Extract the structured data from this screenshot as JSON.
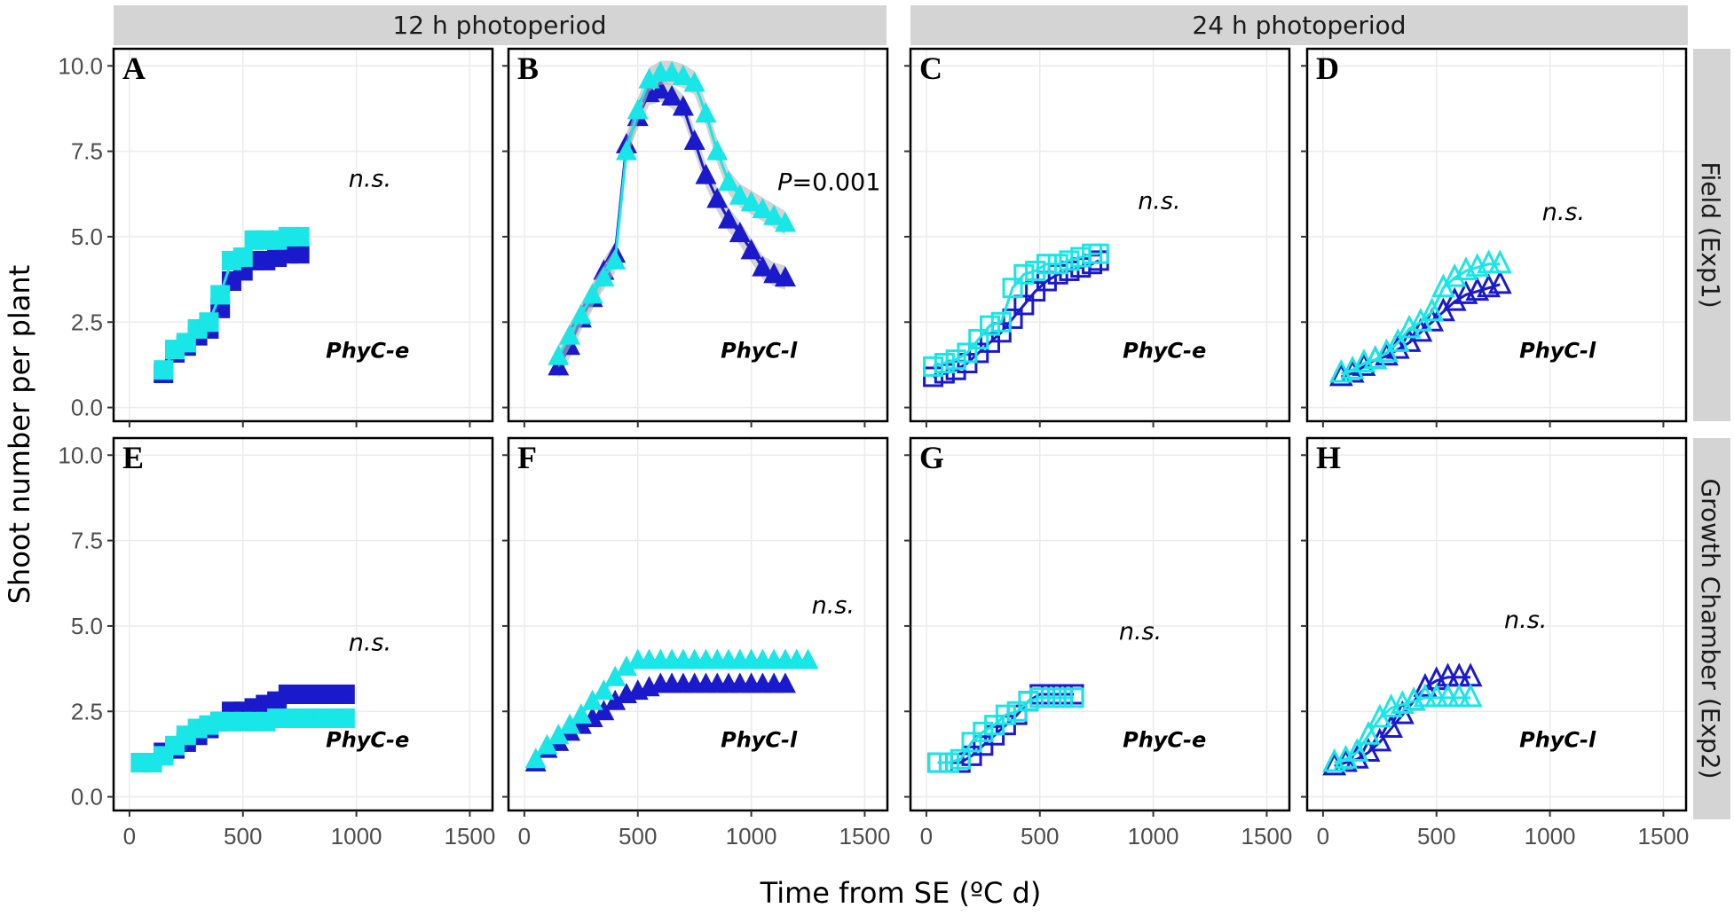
{
  "colors": {
    "early": "#1a1acc",
    "late": "#19e6e6",
    "strip_bg": "#d4d4d4",
    "ribbon": "#b8b8b8",
    "grid": "#ebebeb"
  },
  "chart_data": {
    "type": "scatter",
    "xlabel": "Time from SE (ºC d)",
    "ylabel": "Shoot number per plant",
    "columns": [
      "12 h photoperiod",
      "24 h photoperiod"
    ],
    "rows": [
      "Field (Exp1)",
      "Growth Chamber (Exp2)"
    ],
    "xlim": [
      -70,
      1600
    ],
    "ylim": [
      -0.4,
      10.5
    ],
    "x_ticks": [
      0,
      500,
      1000,
      1500
    ],
    "x_tick_labels": [
      "0",
      "500",
      "1000",
      "1500"
    ],
    "y_ticks": [
      0,
      2.5,
      5,
      7.5,
      10
    ],
    "y_tick_labels": [
      "0.0",
      "2.5",
      "5.0",
      "7.5",
      "10.0"
    ],
    "panels": [
      {
        "letter": "A",
        "genotype": "PhyC-e",
        "annotation": "n.s.",
        "marker": "filled-square",
        "series": [
          {
            "name": "dark blue",
            "x": [
              150,
              200,
              250,
              300,
              350,
              400,
              450,
              500,
              550,
              600,
              650,
              700,
              750
            ],
            "y": [
              1.0,
              1.6,
              1.8,
              2.1,
              2.3,
              2.9,
              3.7,
              4.0,
              4.3,
              4.3,
              4.4,
              4.5,
              4.5
            ]
          },
          {
            "name": "cyan",
            "x": [
              150,
              200,
              250,
              300,
              350,
              400,
              450,
              500,
              550,
              600,
              650,
              700,
              750
            ],
            "y": [
              1.1,
              1.7,
              1.9,
              2.3,
              2.5,
              3.3,
              4.3,
              4.4,
              4.9,
              4.9,
              4.9,
              5.0,
              5.0
            ]
          }
        ]
      },
      {
        "letter": "B",
        "genotype": "PhyC-l",
        "annotation": "P=0.001",
        "marker": "filled-triangle",
        "series": [
          {
            "name": "dark blue",
            "x": [
              150,
              200,
              250,
              300,
              350,
              400,
              450,
              500,
              550,
              600,
              650,
              700,
              750,
              800,
              850,
              900,
              950,
              1000,
              1050,
              1100,
              1150
            ],
            "y": [
              1.2,
              1.8,
              2.6,
              3.2,
              4.0,
              4.5,
              7.7,
              8.5,
              9.2,
              9.3,
              9.1,
              8.8,
              7.8,
              6.8,
              6.1,
              5.5,
              5.1,
              4.6,
              4.1,
              3.9,
              3.8
            ]
          },
          {
            "name": "cyan",
            "x": [
              150,
              200,
              250,
              300,
              350,
              400,
              450,
              500,
              550,
              600,
              650,
              700,
              750,
              800,
              850,
              900,
              950,
              1000,
              1050,
              1100,
              1150
            ],
            "y": [
              1.5,
              2.1,
              2.7,
              3.3,
              3.8,
              4.3,
              7.5,
              8.7,
              9.6,
              9.8,
              9.8,
              9.7,
              9.5,
              8.6,
              7.5,
              6.6,
              6.2,
              6.0,
              5.8,
              5.6,
              5.4
            ]
          }
        ]
      },
      {
        "letter": "C",
        "genotype": "PhyC-e",
        "annotation": "n.s.",
        "marker": "open-square",
        "series": [
          {
            "name": "dark blue",
            "x": [
              30,
              80,
              130,
              180,
              230,
              280,
              330,
              380,
              430,
              480,
              530,
              580,
              630,
              680,
              730,
              760
            ],
            "y": [
              0.9,
              1.0,
              1.1,
              1.3,
              1.6,
              1.9,
              2.2,
              2.6,
              3.0,
              3.4,
              3.7,
              3.9,
              4.0,
              4.1,
              4.2,
              4.3
            ]
          },
          {
            "name": "cyan",
            "x": [
              30,
              80,
              130,
              180,
              230,
              280,
              330,
              380,
              430,
              480,
              530,
              580,
              630,
              680,
              730,
              760
            ],
            "y": [
              1.2,
              1.3,
              1.4,
              1.6,
              2.0,
              2.4,
              2.5,
              3.5,
              3.9,
              4.0,
              4.2,
              4.2,
              4.3,
              4.4,
              4.5,
              4.5
            ]
          }
        ]
      },
      {
        "letter": "D",
        "genotype": "PhyC-l",
        "annotation": "n.s.",
        "marker": "open-triangle",
        "series": [
          {
            "name": "dark blue",
            "x": [
              80,
              130,
              180,
              230,
              280,
              330,
              380,
              430,
              480,
              530,
              580,
              630,
              680,
              730,
              780
            ],
            "y": [
              0.9,
              1.0,
              1.2,
              1.4,
              1.5,
              1.7,
              1.9,
              2.2,
              2.5,
              2.8,
              3.1,
              3.3,
              3.4,
              3.5,
              3.6
            ]
          },
          {
            "name": "cyan",
            "x": [
              80,
              130,
              180,
              230,
              280,
              330,
              380,
              430,
              480,
              530,
              580,
              630,
              680,
              730,
              780
            ],
            "y": [
              1.0,
              1.1,
              1.3,
              1.4,
              1.6,
              1.9,
              2.3,
              2.5,
              2.8,
              3.5,
              3.8,
              4.0,
              4.1,
              4.2,
              4.2
            ]
          }
        ]
      },
      {
        "letter": "E",
        "genotype": "PhyC-e",
        "annotation": "n.s.",
        "marker": "filled-square",
        "series": [
          {
            "name": "dark blue",
            "x": [
              50,
              100,
              150,
              200,
              250,
              300,
              350,
              400,
              450,
              500,
              550,
              600,
              650,
              700,
              750,
              800,
              850,
              900,
              950
            ],
            "y": [
              1.0,
              1.0,
              1.3,
              1.4,
              1.6,
              1.8,
              2.0,
              2.2,
              2.5,
              2.5,
              2.6,
              2.7,
              2.8,
              3.0,
              3.0,
              3.0,
              3.0,
              3.0,
              3.0
            ]
          },
          {
            "name": "cyan",
            "x": [
              50,
              100,
              150,
              200,
              250,
              300,
              350,
              400,
              450,
              500,
              550,
              600,
              650,
              700,
              750,
              800,
              850,
              900,
              950
            ],
            "y": [
              1.0,
              1.0,
              1.2,
              1.5,
              1.8,
              2.0,
              2.1,
              2.2,
              2.2,
              2.2,
              2.2,
              2.2,
              2.3,
              2.3,
              2.3,
              2.3,
              2.3,
              2.3,
              2.3
            ]
          }
        ]
      },
      {
        "letter": "F",
        "genotype": "PhyC-l",
        "annotation": "n.s.",
        "marker": "filled-triangle",
        "series": [
          {
            "name": "dark blue",
            "x": [
              50,
              100,
              150,
              200,
              250,
              300,
              350,
              400,
              450,
              500,
              550,
              600,
              650,
              700,
              750,
              800,
              850,
              900,
              950,
              1000,
              1050,
              1100,
              1150
            ],
            "y": [
              1.0,
              1.4,
              1.6,
              1.9,
              2.1,
              2.3,
              2.5,
              2.8,
              3.0,
              3.1,
              3.2,
              3.3,
              3.3,
              3.3,
              3.3,
              3.3,
              3.3,
              3.3,
              3.3,
              3.3,
              3.3,
              3.3,
              3.3
            ]
          },
          {
            "name": "cyan",
            "x": [
              50,
              100,
              150,
              200,
              250,
              300,
              350,
              400,
              450,
              500,
              550,
              600,
              650,
              700,
              750,
              800,
              850,
              900,
              950,
              1000,
              1050,
              1100,
              1150,
              1200,
              1250
            ],
            "y": [
              1.1,
              1.5,
              1.8,
              2.1,
              2.4,
              2.8,
              3.1,
              3.5,
              3.8,
              4.0,
              4.0,
              4.0,
              4.0,
              4.0,
              4.0,
              4.0,
              4.0,
              4.0,
              4.0,
              4.0,
              4.0,
              4.0,
              4.0,
              4.0,
              4.0
            ]
          }
        ]
      },
      {
        "letter": "G",
        "genotype": "PhyC-e",
        "annotation": "n.s.",
        "marker": "open-square",
        "series": [
          {
            "name": "dark blue",
            "x": [
              50,
              100,
              150,
              200,
              250,
              300,
              350,
              400,
              450,
              500,
              550,
              600,
              650
            ],
            "y": [
              1.0,
              1.0,
              1.0,
              1.2,
              1.5,
              1.8,
              2.1,
              2.4,
              2.8,
              3.0,
              3.0,
              3.0,
              3.0
            ]
          },
          {
            "name": "cyan",
            "x": [
              50,
              100,
              150,
              200,
              250,
              300,
              350,
              400,
              450,
              500,
              550,
              600,
              650
            ],
            "y": [
              1.0,
              1.0,
              1.1,
              1.6,
              1.9,
              2.1,
              2.4,
              2.5,
              2.8,
              2.9,
              2.9,
              2.9,
              2.9
            ]
          }
        ]
      },
      {
        "letter": "H",
        "genotype": "PhyC-l",
        "annotation": "n.s.",
        "marker": "open-triangle",
        "series": [
          {
            "name": "dark blue",
            "x": [
              50,
              100,
              150,
              200,
              250,
              300,
              350,
              400,
              450,
              500,
              550,
              600,
              650
            ],
            "y": [
              0.9,
              1.0,
              1.1,
              1.3,
              1.6,
              2.0,
              2.4,
              2.8,
              3.2,
              3.4,
              3.5,
              3.5,
              3.5
            ]
          },
          {
            "name": "cyan",
            "x": [
              50,
              100,
              150,
              200,
              250,
              300,
              350,
              400,
              450,
              500,
              550,
              600,
              650
            ],
            "y": [
              1.0,
              1.1,
              1.3,
              1.8,
              2.3,
              2.6,
              2.7,
              2.8,
              2.9,
              2.9,
              2.9,
              2.9,
              2.9
            ]
          }
        ]
      }
    ]
  }
}
